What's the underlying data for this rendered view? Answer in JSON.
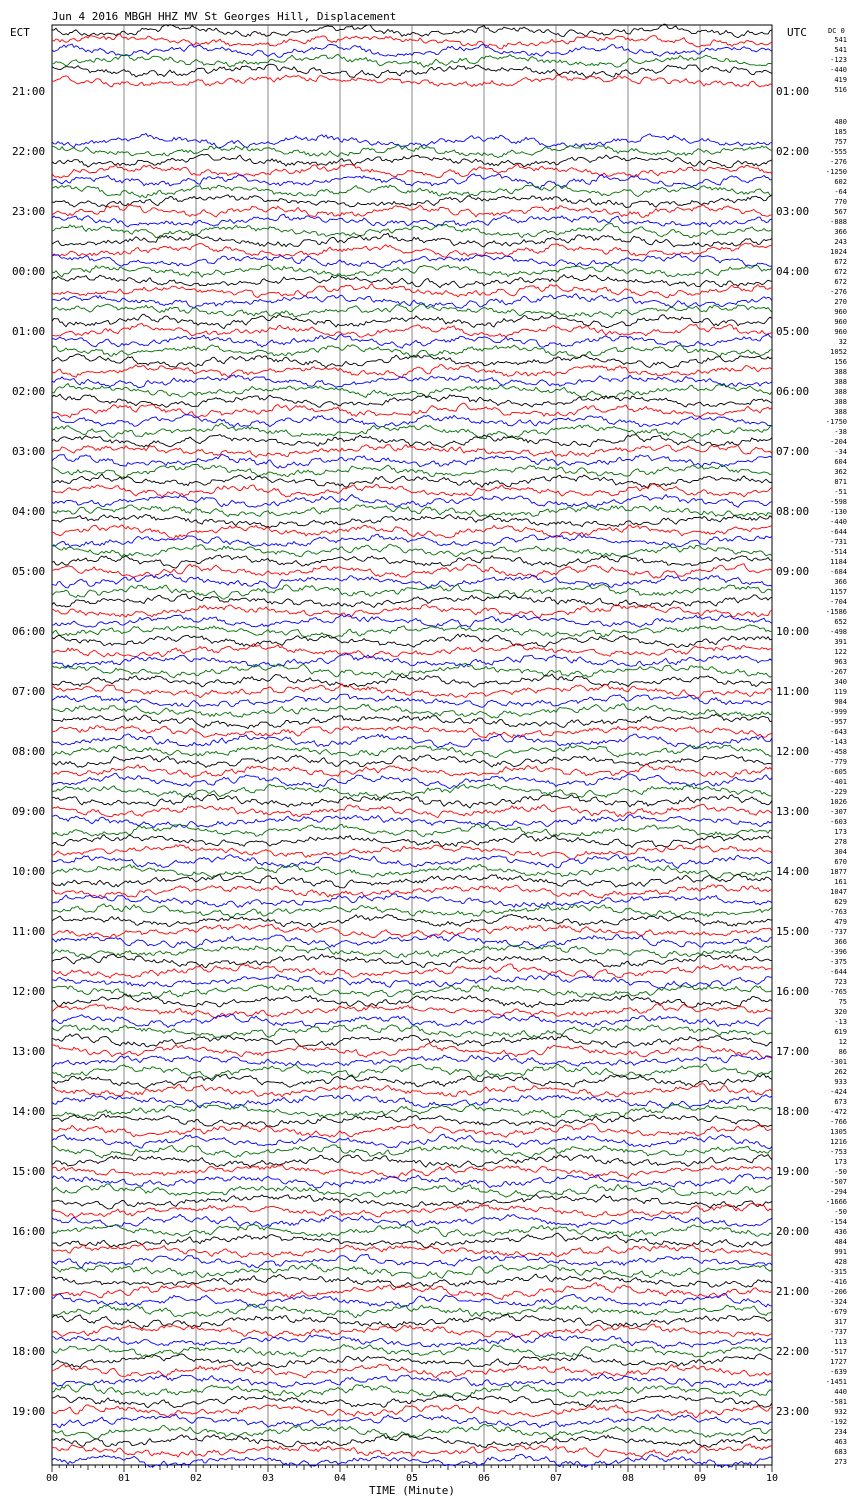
{
  "header": {
    "title": "Jun  4 2016 MBGH HHZ MV St Georges Hill, Displacement",
    "left_zone": "ECT",
    "right_zone": "UTC",
    "dc_label": "DC 0"
  },
  "chart_data": {
    "type": "line",
    "subtype": "helicorder",
    "xlabel": "TIME (Minute)",
    "x_ticks": [
      "00",
      "01",
      "02",
      "03",
      "04",
      "05",
      "06",
      "07",
      "08",
      "09",
      "10"
    ],
    "xlim": [
      0,
      10
    ],
    "trace_colors": [
      "#000000",
      "#ff0000",
      "#0000ff",
      "#007000"
    ],
    "left_hours": [
      "21:00",
      "22:00",
      "23:00",
      "00:00",
      "01:00",
      "02:00",
      "03:00",
      "04:00",
      "05:00",
      "06:00",
      "07:00",
      "08:00",
      "09:00",
      "10:00",
      "11:00",
      "12:00",
      "13:00",
      "14:00",
      "15:00",
      "16:00",
      "17:00",
      "18:00",
      "19:00"
    ],
    "right_hours": [
      "01:00",
      "02:00",
      "03:00",
      "04:00",
      "05:00",
      "06:00",
      "07:00",
      "08:00",
      "09:00",
      "10:00",
      "11:00",
      "12:00",
      "13:00",
      "14:00",
      "15:00",
      "16:00",
      "17:00",
      "18:00",
      "19:00",
      "20:00",
      "21:00",
      "22:00",
      "23:00"
    ],
    "top_offsets": [
      "541",
      "541",
      "-123",
      "-440",
      "419",
      "516"
    ],
    "offsets": [
      "480",
      "185",
      "757",
      "-555",
      "-276",
      "-1250",
      "602",
      "-64",
      "770",
      "567",
      "-888",
      "366",
      "243",
      "1024",
      "672",
      "672",
      "672",
      "-276",
      "270",
      "960",
      "960",
      "960",
      "32",
      "1052",
      "156",
      "388",
      "388",
      "388",
      "388",
      "388",
      "-1750",
      "-38",
      "-204",
      "-34",
      "604",
      "362",
      "871",
      "-51",
      "-598",
      "-130",
      "-440",
      "-644",
      "-731",
      "-514",
      "1184",
      "-684",
      "366",
      "1157",
      "-704",
      "-1586",
      "652",
      "-498",
      "391",
      "122",
      "963",
      "-267",
      "340",
      "119",
      "984",
      "-999",
      "-957",
      "-643",
      "-143",
      "-458",
      "-779",
      "-605",
      "-401",
      "-229",
      "1026",
      "-307",
      "-603",
      "173",
      "278",
      "304",
      "670",
      "1877",
      "161",
      "1047",
      "629",
      "-763",
      "479",
      "-737",
      "366",
      "-396",
      "-375",
      "-644",
      "723",
      "-765",
      "75",
      "320",
      "-13",
      "619",
      "12",
      "86",
      "-301",
      "262",
      "933",
      "-424",
      "673",
      "-472",
      "-766",
      "1305",
      "1216",
      "-753",
      "173",
      "-50",
      "-507",
      "-294",
      "-1666",
      "-50",
      "-154",
      "436",
      "484",
      "991",
      "428",
      "-315",
      "-416",
      "-206",
      "-324",
      "-679",
      "317",
      "-737",
      "113",
      "-517",
      "1727",
      "-639",
      "-1451",
      "440",
      "-581",
      "932",
      "-192",
      "234",
      "463",
      "683",
      "273"
    ]
  }
}
